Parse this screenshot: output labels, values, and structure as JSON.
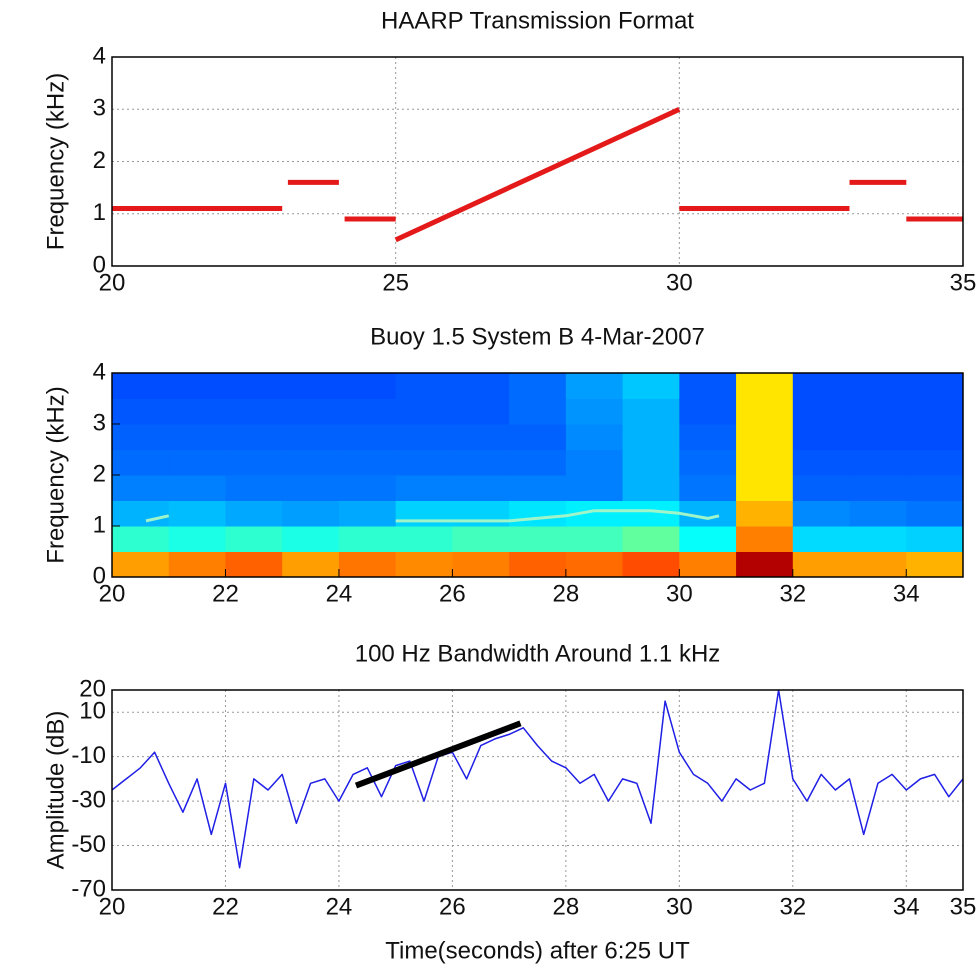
{
  "chart_data": [
    {
      "type": "line",
      "title": "HAARP Transmission Format",
      "ylabel": "Frequency (kHz)",
      "xlim": [
        20,
        35
      ],
      "ylim": [
        0,
        4
      ],
      "xticks": [
        20,
        25,
        30,
        35
      ],
      "yticks": [
        0,
        1,
        2,
        3,
        4
      ],
      "grid": true,
      "series": [
        {
          "color": "#e41a1a",
          "width": 5,
          "x": [
            20,
            23,
            null,
            23.1,
            24,
            null,
            24.1,
            25,
            null,
            25,
            30,
            null,
            30,
            33,
            null,
            33,
            34,
            null,
            34,
            35
          ],
          "values": [
            1.1,
            1.1,
            null,
            1.6,
            1.6,
            null,
            0.9,
            0.9,
            null,
            0.5,
            3.0,
            null,
            1.1,
            1.1,
            null,
            1.6,
            1.6,
            null,
            0.9,
            0.9
          ]
        }
      ]
    },
    {
      "type": "spectrogram",
      "title": "Buoy 1.5 System B 4-Mar-2007",
      "ylabel": "Frequency (kHz)",
      "xlim": [
        20,
        35
      ],
      "ylim": [
        0,
        4
      ],
      "xticks": [
        20,
        22,
        24,
        26,
        28,
        30,
        32,
        34
      ],
      "yticks": [
        0,
        1,
        2,
        3,
        4
      ],
      "grid": false,
      "colormap": "jet",
      "zlim": [
        0,
        1
      ],
      "xbins": [
        20,
        21,
        22,
        23,
        24,
        25,
        26,
        27,
        28,
        29,
        30,
        31,
        32,
        33,
        34,
        35
      ],
      "ybins": [
        0,
        0.5,
        1,
        1.5,
        2,
        2.5,
        3,
        3.5,
        4
      ],
      "z": [
        [
          0.72,
          0.75,
          0.78,
          0.72,
          0.76,
          0.74,
          0.75,
          0.78,
          0.77,
          0.8,
          0.75,
          0.95,
          0.72,
          0.72,
          0.7
        ],
        [
          0.42,
          0.4,
          0.42,
          0.4,
          0.42,
          0.42,
          0.44,
          0.44,
          0.44,
          0.47,
          0.38,
          0.75,
          0.34,
          0.34,
          0.33
        ],
        [
          0.3,
          0.31,
          0.29,
          0.28,
          0.29,
          0.33,
          0.33,
          0.35,
          0.36,
          0.36,
          0.3,
          0.7,
          0.26,
          0.25,
          0.24
        ],
        [
          0.25,
          0.25,
          0.24,
          0.24,
          0.24,
          0.25,
          0.25,
          0.25,
          0.25,
          0.3,
          0.24,
          0.65,
          0.22,
          0.22,
          0.22
        ],
        [
          0.23,
          0.23,
          0.23,
          0.23,
          0.23,
          0.23,
          0.23,
          0.23,
          0.25,
          0.3,
          0.23,
          0.65,
          0.21,
          0.21,
          0.21
        ],
        [
          0.22,
          0.22,
          0.22,
          0.22,
          0.22,
          0.22,
          0.22,
          0.22,
          0.26,
          0.3,
          0.22,
          0.65,
          0.2,
          0.2,
          0.2
        ],
        [
          0.21,
          0.21,
          0.21,
          0.21,
          0.21,
          0.21,
          0.21,
          0.23,
          0.27,
          0.3,
          0.21,
          0.65,
          0.2,
          0.2,
          0.2
        ],
        [
          0.2,
          0.2,
          0.2,
          0.2,
          0.2,
          0.21,
          0.21,
          0.23,
          0.28,
          0.32,
          0.21,
          0.65,
          0.2,
          0.2,
          0.2
        ]
      ],
      "series": [
        {
          "color": "#9ff5c8",
          "width": 3,
          "x": [
            20.6,
            21.0,
            null,
            25,
            26,
            27,
            28,
            28.5,
            29,
            29.5,
            30,
            30.5,
            30.7
          ],
          "values": [
            1.1,
            1.2,
            null,
            1.1,
            1.1,
            1.1,
            1.2,
            1.3,
            1.3,
            1.3,
            1.25,
            1.15,
            1.2
          ]
        }
      ]
    },
    {
      "type": "line",
      "title": "100 Hz Bandwidth Around 1.1 kHz",
      "ylabel": "Amplitude (dB)",
      "xlabel": "Time(seconds) after 6:25 UT",
      "xlim": [
        20,
        35
      ],
      "ylim": [
        -70,
        20
      ],
      "xticks": [
        20,
        22,
        24,
        26,
        28,
        30,
        32,
        34,
        35
      ],
      "yticks": [
        -70,
        -50,
        -30,
        -10,
        10,
        20
      ],
      "grid": true,
      "series": [
        {
          "color": "#1f1fe6",
          "width": 1.5,
          "x": [
            20,
            20.25,
            20.5,
            20.75,
            21,
            21.25,
            21.5,
            21.75,
            22,
            22.25,
            22.5,
            22.75,
            23,
            23.25,
            23.5,
            23.75,
            24,
            24.25,
            24.5,
            24.75,
            25,
            25.25,
            25.5,
            25.75,
            26,
            26.25,
            26.5,
            26.75,
            27,
            27.25,
            27.5,
            27.75,
            28,
            28.25,
            28.5,
            28.75,
            29,
            29.25,
            29.5,
            29.75,
            30,
            30.25,
            30.5,
            30.75,
            31,
            31.25,
            31.5,
            31.75,
            32,
            32.25,
            32.5,
            32.75,
            33,
            33.25,
            33.5,
            33.75,
            34,
            34.25,
            34.5,
            34.75,
            35
          ],
          "values": [
            -25,
            -20,
            -15,
            -8,
            -22,
            -35,
            -20,
            -45,
            -22,
            -60,
            -20,
            -25,
            -18,
            -40,
            -22,
            -20,
            -30,
            -18,
            -15,
            -28,
            -14,
            -12,
            -30,
            -10,
            -8,
            -20,
            -5,
            -2,
            0,
            3,
            -5,
            -12,
            -15,
            -22,
            -18,
            -30,
            -20,
            -22,
            -40,
            15,
            -8,
            -18,
            -22,
            -30,
            -20,
            -25,
            -22,
            20,
            -20,
            -30,
            -18,
            -25,
            -20,
            -45,
            -22,
            -18,
            -25,
            -20,
            -18,
            -28,
            -20
          ]
        },
        {
          "color": "#000000",
          "width": 6,
          "x": [
            24.3,
            27.2
          ],
          "values": [
            -23,
            5
          ]
        }
      ]
    }
  ]
}
